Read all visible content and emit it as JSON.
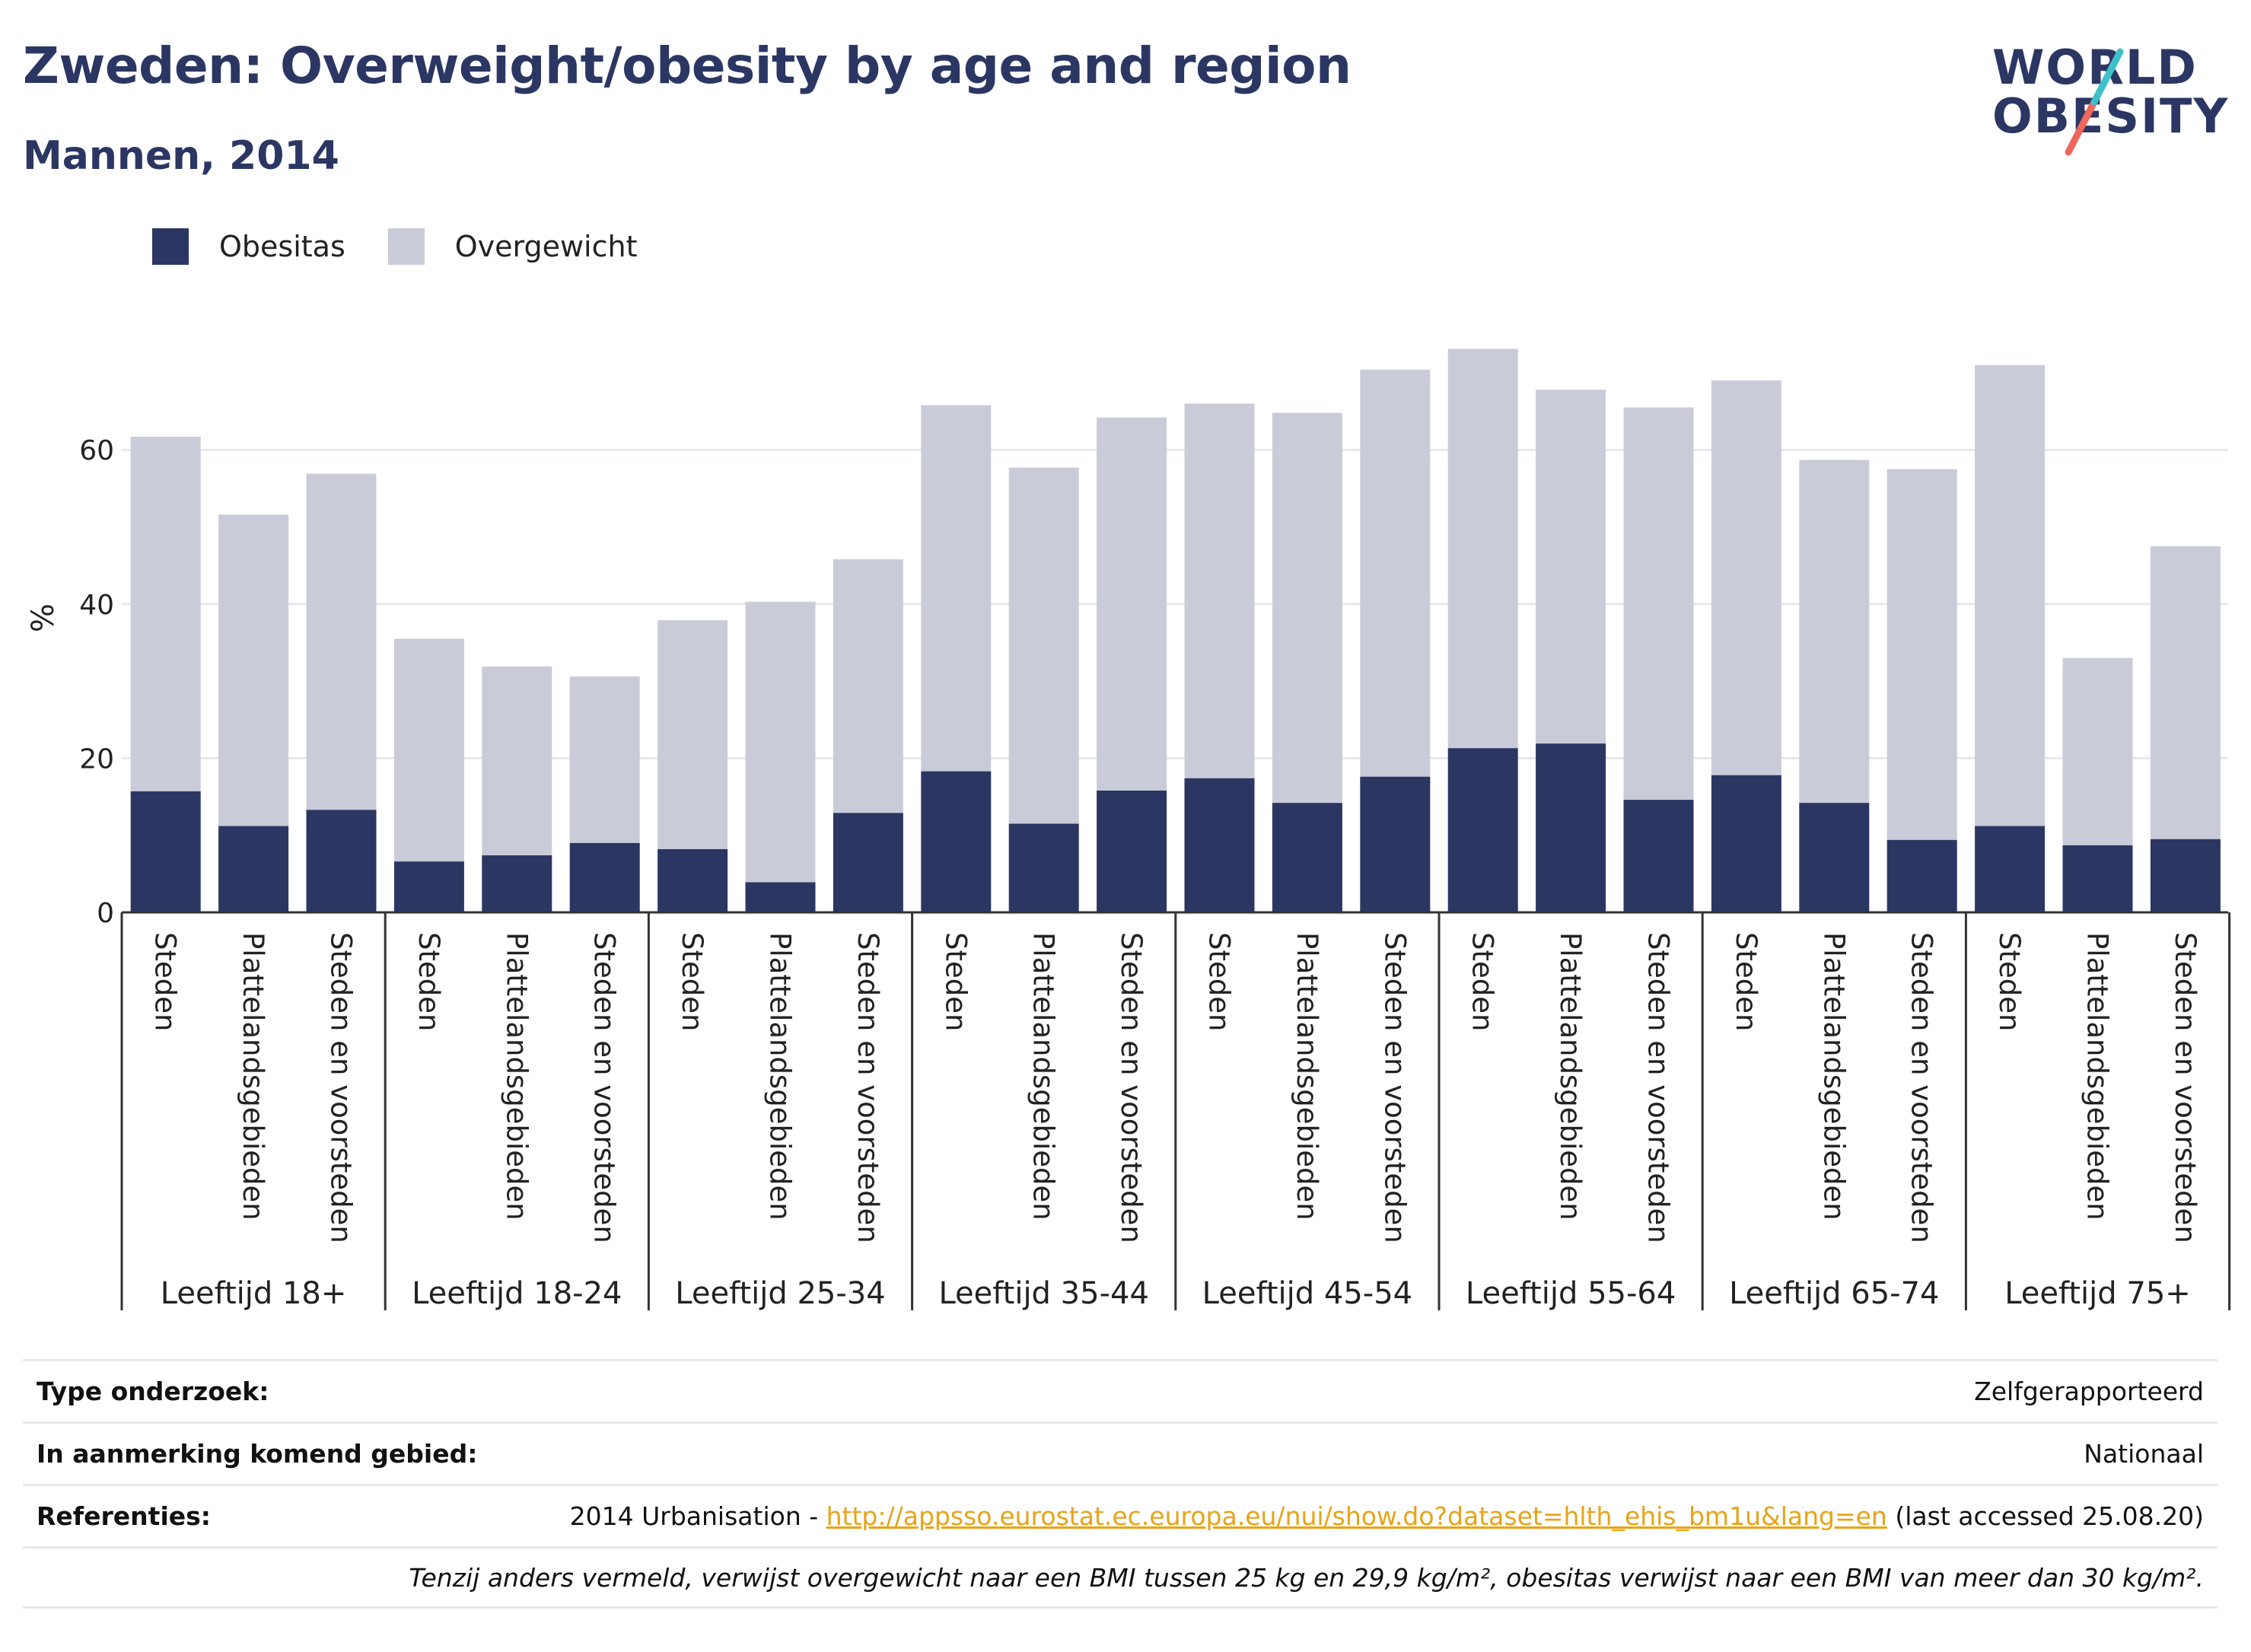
{
  "header": {
    "title": "Zweden: Overweight/obesity by age and region",
    "subtitle": "Mannen, 2014"
  },
  "logo": {
    "line1": "WORLD",
    "line2": "OBESITY"
  },
  "colors": {
    "obesitas": "#2b3663",
    "overgewicht": "#c9ccd8",
    "accent": "#e8a317",
    "logo_teal": "#3fc1c9",
    "logo_coral": "#f0665c"
  },
  "legend": [
    {
      "label": "Obesitas",
      "color": "#2b3663"
    },
    {
      "label": "Overgewicht",
      "color": "#c9ccd8"
    }
  ],
  "chart_data": {
    "type": "bar",
    "stacked": true,
    "ylabel": "%",
    "ylim": [
      0,
      75
    ],
    "yticks": [
      0,
      20,
      40,
      60
    ],
    "grid": true,
    "legend_position": "top-left",
    "groups": [
      "Leeftijd 18+",
      "Leeftijd 18-24",
      "Leeftijd 25-34",
      "Leeftijd 35-44",
      "Leeftijd 45-54",
      "Leeftijd 55-64",
      "Leeftijd 65-74",
      "Leeftijd 75+"
    ],
    "subcategories": [
      "Steden",
      "Plattelandsgebieden",
      "Steden en voorsteden"
    ],
    "series": [
      {
        "name": "Obesitas",
        "values": [
          15.7,
          11.2,
          13.3,
          6.6,
          7.4,
          9.0,
          8.2,
          3.9,
          12.9,
          18.3,
          11.5,
          15.8,
          17.4,
          14.2,
          17.6,
          21.3,
          21.9,
          14.6,
          17.8,
          14.2,
          9.4,
          11.2,
          8.7,
          9.5
        ]
      },
      {
        "name": "Overgewicht",
        "values": [
          46.0,
          40.4,
          43.6,
          28.9,
          24.5,
          21.6,
          29.7,
          36.4,
          32.9,
          47.5,
          46.2,
          48.4,
          48.6,
          50.6,
          52.8,
          51.8,
          45.9,
          50.9,
          51.2,
          44.5,
          48.1,
          59.8,
          24.3,
          38.0
        ]
      }
    ]
  },
  "footer": {
    "rows": [
      {
        "key": "Type onderzoek:",
        "value": "Zelfgerapporteerd"
      },
      {
        "key": "In aanmerking komend gebied:",
        "value": "Nationaal"
      }
    ],
    "references": {
      "key": "Referenties:",
      "prefix": "2014 Urbanisation - ",
      "link": "http://appsso.eurostat.ec.europa.eu/nui/show.do?dataset=hlth_ehis_bm1u&lang=en",
      "suffix": " (last accessed 25.08.20)"
    },
    "note": "Tenzij anders vermeld, verwijst overgewicht naar een BMI tussen 25 kg en 29,9 kg/m², obesitas verwijst naar een BMI van meer dan 30 kg/m²."
  }
}
